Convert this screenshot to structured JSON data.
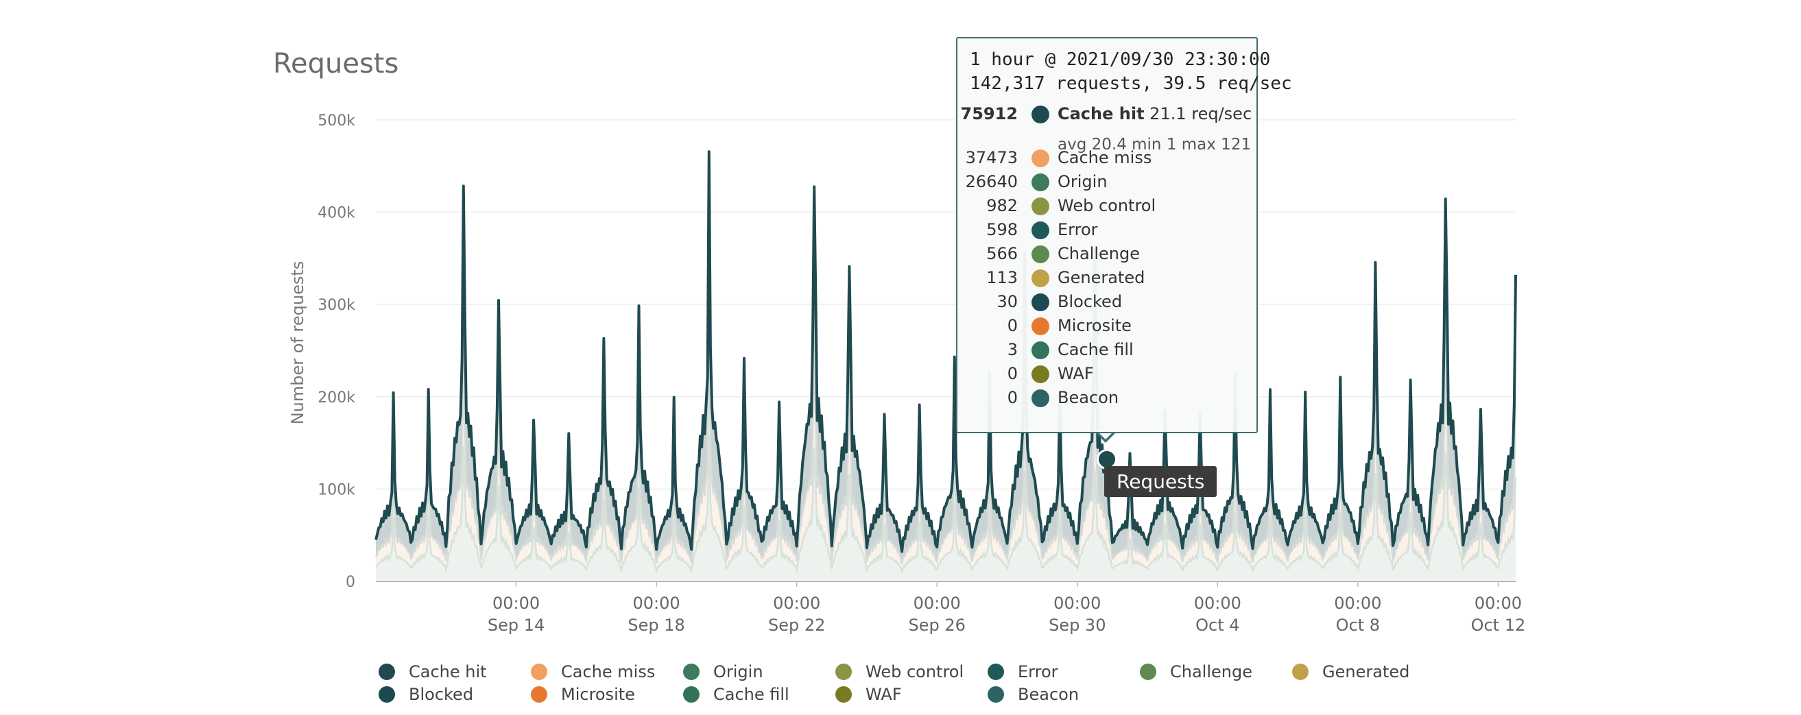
{
  "title": "Requests",
  "chart_data": {
    "type": "area",
    "ylabel": "Number of requests",
    "ylim": [
      0,
      520000
    ],
    "yticks": [
      "0",
      "100k",
      "200k",
      "300k",
      "400k",
      "500k"
    ],
    "yticks_values": [
      0,
      100000,
      200000,
      300000,
      400000,
      500000
    ],
    "xrange": [
      "2021-09-10 00:00",
      "2021-10-12 12:00"
    ],
    "xticks": [
      {
        "time": "00:00",
        "date": "Sep 14",
        "x": "2021-09-14 00:00"
      },
      {
        "time": "00:00",
        "date": "Sep 18",
        "x": "2021-09-18 00:00"
      },
      {
        "time": "00:00",
        "date": "Sep 22",
        "x": "2021-09-22 00:00"
      },
      {
        "time": "00:00",
        "date": "Sep 26",
        "x": "2021-09-26 00:00"
      },
      {
        "time": "00:00",
        "date": "Sep 30",
        "x": "2021-09-30 00:00"
      },
      {
        "time": "00:00",
        "date": "Oct 4",
        "x": "2021-10-04 00:00"
      },
      {
        "time": "00:00",
        "date": "Oct 8",
        "x": "2021-10-08 00:00"
      },
      {
        "time": "00:00",
        "date": "Oct 12",
        "x": "2021-10-12 00:00"
      }
    ],
    "grid": true,
    "legend_position": "bottom",
    "series": [
      {
        "name": "Cache hit",
        "color": "#1f4a50",
        "daily_values": [
          {
            "date": "2021-09-10",
            "peak": 190000,
            "trough": 45000
          },
          {
            "date": "2021-09-11",
            "peak": 200000,
            "trough": 40000
          },
          {
            "date": "2021-09-12",
            "peak": 435000,
            "trough": 35000
          },
          {
            "date": "2021-09-13",
            "peak": 325000,
            "trough": 38000
          },
          {
            "date": "2021-09-14",
            "peak": 190000,
            "trough": 40000
          },
          {
            "date": "2021-09-15",
            "peak": 170000,
            "trough": 42000
          },
          {
            "date": "2021-09-16",
            "peak": 265000,
            "trough": 40000
          },
          {
            "date": "2021-09-17",
            "peak": 285000,
            "trough": 38000
          },
          {
            "date": "2021-09-18",
            "peak": 185000,
            "trough": 36000
          },
          {
            "date": "2021-09-19",
            "peak": 435000,
            "trough": 34000
          },
          {
            "date": "2021-09-20",
            "peak": 235000,
            "trough": 38000
          },
          {
            "date": "2021-09-21",
            "peak": 200000,
            "trough": 40000
          },
          {
            "date": "2021-09-22",
            "peak": 460000,
            "trough": 36000
          },
          {
            "date": "2021-09-23",
            "peak": 370000,
            "trough": 38000
          },
          {
            "date": "2021-09-24",
            "peak": 190000,
            "trough": 38000
          },
          {
            "date": "2021-09-25",
            "peak": 190000,
            "trough": 35000
          },
          {
            "date": "2021-09-26",
            "peak": 230000,
            "trough": 40000
          },
          {
            "date": "2021-09-27",
            "peak": 210000,
            "trough": 38000
          },
          {
            "date": "2021-09-28",
            "peak": 335000,
            "trough": 40000
          },
          {
            "date": "2021-09-29",
            "peak": 200000,
            "trough": 40000
          },
          {
            "date": "2021-09-30",
            "peak": 375000,
            "trough": 38000
          },
          {
            "date": "2021-10-01",
            "peak": 150000,
            "trough": 40000
          },
          {
            "date": "2021-10-02",
            "peak": 200000,
            "trough": 40000
          },
          {
            "date": "2021-10-03",
            "peak": 190000,
            "trough": 38000
          },
          {
            "date": "2021-10-04",
            "peak": 220000,
            "trough": 40000
          },
          {
            "date": "2021-10-05",
            "peak": 195000,
            "trough": 38000
          },
          {
            "date": "2021-10-06",
            "peak": 190000,
            "trough": 40000
          },
          {
            "date": "2021-10-07",
            "peak": 210000,
            "trough": 40000
          },
          {
            "date": "2021-10-08",
            "peak": 345000,
            "trough": 38000
          },
          {
            "date": "2021-10-09",
            "peak": 230000,
            "trough": 36000
          },
          {
            "date": "2021-10-10",
            "peak": 450000,
            "trough": 38000
          },
          {
            "date": "2021-10-11",
            "peak": 200000,
            "trough": 40000
          },
          {
            "date": "2021-10-12",
            "peak": 340000,
            "trough": 45000
          }
        ]
      },
      {
        "name": "Cache miss",
        "color": "#f0a060"
      },
      {
        "name": "Origin",
        "color": "#3e7a5e"
      },
      {
        "name": "Web control",
        "color": "#8c9444"
      },
      {
        "name": "Error",
        "color": "#1f5a5a"
      },
      {
        "name": "Challenge",
        "color": "#5e8a52"
      },
      {
        "name": "Generated",
        "color": "#c0a048"
      },
      {
        "name": "Blocked",
        "color": "#1c4a52"
      },
      {
        "name": "Microsite",
        "color": "#e8782e"
      },
      {
        "name": "Cache fill",
        "color": "#33735a"
      },
      {
        "name": "WAF",
        "color": "#7a7a22"
      },
      {
        "name": "Beacon",
        "color": "#2d6463"
      }
    ]
  },
  "tooltip": {
    "header_line1": "1 hour @ 2021/09/30 23:30:00",
    "header_line2": "142,317 requests, 39.5 req/sec",
    "rows": [
      {
        "value": "75912",
        "name": "Cache hit",
        "extra": "21.1 req/sec",
        "color": "#1f4a50"
      },
      {
        "value": "37473",
        "name": "Cache miss",
        "color": "#f0a060"
      },
      {
        "value": "26640",
        "name": "Origin",
        "color": "#3e7a5e"
      },
      {
        "value": "982",
        "name": "Web control",
        "color": "#8c9444"
      },
      {
        "value": "598",
        "name": "Error",
        "color": "#1f5a5a"
      },
      {
        "value": "566",
        "name": "Challenge",
        "color": "#5e8a52"
      },
      {
        "value": "113",
        "name": "Generated",
        "color": "#c0a048"
      },
      {
        "value": "30",
        "name": "Blocked",
        "color": "#1c4a52"
      },
      {
        "value": "0",
        "name": "Microsite",
        "color": "#e8782e"
      },
      {
        "value": "3",
        "name": "Cache fill",
        "color": "#33735a"
      },
      {
        "value": "0",
        "name": "WAF",
        "color": "#7a7a22"
      },
      {
        "value": "0",
        "name": "Beacon",
        "color": "#2d6463"
      }
    ],
    "avg_line": "avg 20.4 min 1 max 121"
  },
  "series_label": "Requests",
  "legend": [
    {
      "name": "Cache hit",
      "color": "#1f4a50"
    },
    {
      "name": "Cache miss",
      "color": "#f0a060"
    },
    {
      "name": "Origin",
      "color": "#3e7a5e"
    },
    {
      "name": "Web control",
      "color": "#8c9444"
    },
    {
      "name": "Error",
      "color": "#1f5a5a"
    },
    {
      "name": "Challenge",
      "color": "#5e8a52"
    },
    {
      "name": "Generated",
      "color": "#c0a048"
    },
    {
      "name": "Blocked",
      "color": "#1c4a52"
    },
    {
      "name": "Microsite",
      "color": "#e8782e"
    },
    {
      "name": "Cache fill",
      "color": "#33735a"
    },
    {
      "name": "WAF",
      "color": "#7a7a22"
    },
    {
      "name": "Beacon",
      "color": "#2d6463"
    }
  ]
}
